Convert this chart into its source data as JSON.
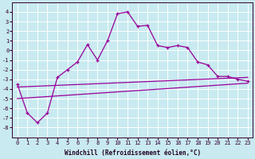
{
  "bg_color": "#c8eaf0",
  "line_color": "#990099",
  "xlabel": "Windchill (Refroidissement éolien,°C)",
  "x": [
    0,
    1,
    2,
    3,
    4,
    5,
    6,
    7,
    8,
    9,
    10,
    11,
    12,
    13,
    14,
    15,
    16,
    17,
    18,
    19,
    20,
    21,
    22,
    23
  ],
  "y_curve": [
    -3.5,
    -6.5,
    -7.5,
    -6.5,
    -2.8,
    -2.0,
    -1.2,
    0.6,
    -1.0,
    1.0,
    3.8,
    4.0,
    2.5,
    2.6,
    0.5,
    0.3,
    0.5,
    0.3,
    -1.2,
    -1.5,
    -2.7,
    -2.7,
    -3.0,
    -3.2
  ],
  "line1_x": [
    0,
    23
  ],
  "line1_y": [
    -3.8,
    -2.8
  ],
  "line2_x": [
    0,
    23
  ],
  "line2_y": [
    -5.0,
    -3.4
  ],
  "xlim": [
    -0.5,
    23.5
  ],
  "ylim": [
    -9,
    5
  ],
  "ytick_vals": [
    -8,
    -7,
    -6,
    -5,
    -4,
    -3,
    -2,
    -1,
    0,
    1,
    2,
    3,
    4
  ],
  "xtick_vals": [
    0,
    1,
    2,
    3,
    4,
    5,
    6,
    7,
    8,
    9,
    10,
    11,
    12,
    13,
    14,
    15,
    16,
    17,
    18,
    19,
    20,
    21,
    22,
    23
  ],
  "grid_color": "#ffffff",
  "tick_color": "#330033",
  "xlabel_color": "#220022",
  "tick_fontsize": 5,
  "xlabel_fontsize": 5.5
}
